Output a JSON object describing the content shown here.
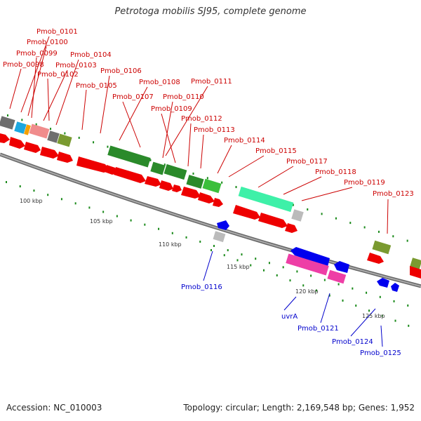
{
  "title": "Petrotoga mobilis SJ95, complete genome",
  "accession": "Accession: NC_010003",
  "summary": "Topology: circular; Length: 2,169,548 bp; Genes: 1,952",
  "colors": {
    "forward_label": "#cc0000",
    "reverse_label": "#0000cc",
    "cds_forward": "#ee0000",
    "cds_reverse": "#0000ee",
    "tick": "#1a8a1a",
    "backbone": "#888888"
  },
  "ticks": [
    "100 kbp",
    "105 kbp",
    "110 kbp",
    "115 kbp",
    "120 kbp",
    "125 kbp"
  ],
  "forward_labels": [
    "Pmob_0101",
    "Pmob_0100",
    "Pmob_0099",
    "Pmob_0104",
    "Pmob_0098",
    "Pmob_0103",
    "Pmob_0102",
    "Pmob_0106",
    "Pmob_0105",
    "Pmob_0108",
    "Pmob_0111",
    "Pmob_0107",
    "Pmob_0110",
    "Pmob_0109",
    "Pmob_0112",
    "Pmob_0113",
    "Pmob_0114",
    "Pmob_0115",
    "Pmob_0117",
    "Pmob_0118",
    "Pmob_0119",
    "Pmob_0123"
  ],
  "reverse_labels": [
    "Pmob_0116",
    "uvrA",
    "Pmob_0121",
    "Pmob_0124",
    "Pmob_0125"
  ]
}
